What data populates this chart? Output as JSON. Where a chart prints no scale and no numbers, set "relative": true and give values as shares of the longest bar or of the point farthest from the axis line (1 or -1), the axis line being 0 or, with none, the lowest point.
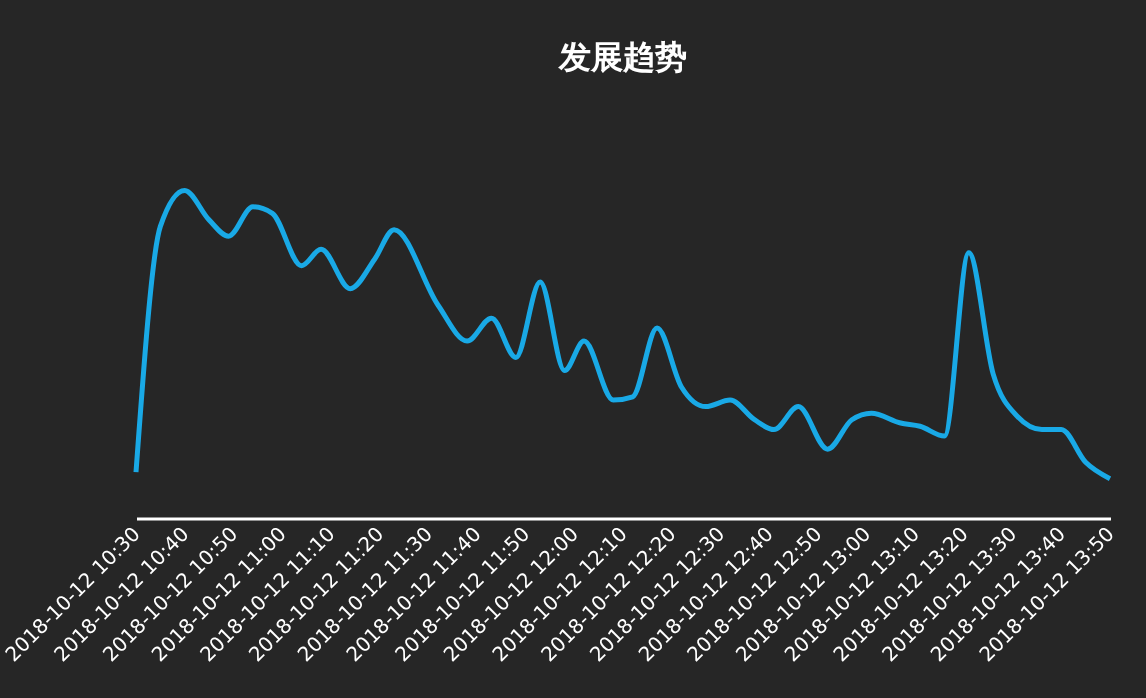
{
  "chart_data": {
    "type": "line",
    "title": "发展趋势",
    "relative": true,
    "grid": false,
    "marker": "none",
    "line_style": "solid",
    "x": [
      "2018-10-12T10:30",
      "2018-10-12T10:35",
      "2018-10-12T10:40",
      "2018-10-12T10:45",
      "2018-10-12T10:49",
      "2018-10-12T10:54",
      "2018-10-12T10:58",
      "2018-10-12T11:04",
      "2018-10-12T11:08",
      "2018-10-12T11:14",
      "2018-10-12T11:19",
      "2018-10-12T11:23",
      "2018-10-12T11:32",
      "2018-10-12T11:38",
      "2018-10-12T11:43",
      "2018-10-12T11:48",
      "2018-10-12T11:53",
      "2018-10-12T11:58",
      "2018-10-12T12:02",
      "2018-10-12T12:08",
      "2018-10-12T12:12",
      "2018-10-12T12:17",
      "2018-10-12T12:22",
      "2018-10-12T12:27",
      "2018-10-12T12:32",
      "2018-10-12T12:37",
      "2018-10-12T12:41",
      "2018-10-12T12:46",
      "2018-10-12T12:52",
      "2018-10-12T12:57",
      "2018-10-12T13:01",
      "2018-10-12T13:07",
      "2018-10-12T13:11",
      "2018-10-12T13:16",
      "2018-10-12T13:21",
      "2018-10-12T13:26",
      "2018-10-12T13:31",
      "2018-10-12T13:36",
      "2018-10-12T13:40",
      "2018-10-12T13:45",
      "2018-10-12T13:50"
    ],
    "series": [
      {
        "color": "#19a9e6",
        "values": [
          0.14,
          0.89,
          1.0,
          0.91,
          0.86,
          0.95,
          0.93,
          0.77,
          0.82,
          0.7,
          0.79,
          0.88,
          0.65,
          0.54,
          0.61,
          0.49,
          0.72,
          0.45,
          0.54,
          0.36,
          0.37,
          0.58,
          0.4,
          0.34,
          0.36,
          0.3,
          0.27,
          0.34,
          0.21,
          0.3,
          0.32,
          0.29,
          0.28,
          0.25,
          0.81,
          0.44,
          0.31,
          0.27,
          0.27,
          0.17,
          0.12
        ]
      }
    ],
    "xlim": [
      "2018-10-12T10:30",
      "2018-10-12T13:50"
    ],
    "xticks": [
      {
        "value": "2018-10-12T10:30",
        "label": "2018-10-12 10:30"
      },
      {
        "value": "2018-10-12T10:40",
        "label": "2018-10-12 10:40"
      },
      {
        "value": "2018-10-12T10:50",
        "label": "2018-10-12 10:50"
      },
      {
        "value": "2018-10-12T11:00",
        "label": "2018-10-12 11:00"
      },
      {
        "value": "2018-10-12T11:10",
        "label": "2018-10-12 11:10"
      },
      {
        "value": "2018-10-12T11:20",
        "label": "2018-10-12 11:20"
      },
      {
        "value": "2018-10-12T11:30",
        "label": "2018-10-12 11:30"
      },
      {
        "value": "2018-10-12T11:40",
        "label": "2018-10-12 11:40"
      },
      {
        "value": "2018-10-12T11:50",
        "label": "2018-10-12 11:50"
      },
      {
        "value": "2018-10-12T12:00",
        "label": "2018-10-12 12:00"
      },
      {
        "value": "2018-10-12T12:10",
        "label": "2018-10-12 12:10"
      },
      {
        "value": "2018-10-12T12:20",
        "label": "2018-10-12 12:20"
      },
      {
        "value": "2018-10-12T12:30",
        "label": "2018-10-12 12:30"
      },
      {
        "value": "2018-10-12T12:40",
        "label": "2018-10-12 12:40"
      },
      {
        "value": "2018-10-12T12:50",
        "label": "2018-10-12 12:50"
      },
      {
        "value": "2018-10-12T13:00",
        "label": "2018-10-12 13:00"
      },
      {
        "value": "2018-10-12T13:10",
        "label": "2018-10-12 13:10"
      },
      {
        "value": "2018-10-12T13:20",
        "label": "2018-10-12 13:20"
      },
      {
        "value": "2018-10-12T13:30",
        "label": "2018-10-12 13:30"
      },
      {
        "value": "2018-10-12T13:40",
        "label": "2018-10-12 13:40"
      },
      {
        "value": "2018-10-12T13:50",
        "label": "2018-10-12 13:50"
      }
    ]
  }
}
